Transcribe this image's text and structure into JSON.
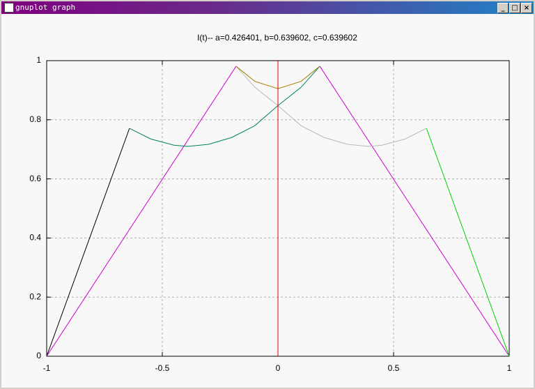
{
  "window": {
    "title": "gnuplot graph"
  },
  "chart_data": {
    "type": "line",
    "title": "I(t)-- a=0.426401, b=0.639602, c=0.639602",
    "xlim": [
      -1,
      1
    ],
    "ylim": [
      0,
      1
    ],
    "xticks": [
      -1,
      -0.5,
      0,
      0.5,
      1
    ],
    "yticks": [
      0,
      0.2,
      0.4,
      0.6,
      0.8,
      1
    ],
    "grid": true,
    "series": [
      {
        "color": "#000000",
        "x": [
          -1,
          -0.642
        ],
        "values": [
          0,
          0.771
        ]
      },
      {
        "color": "#d000d0",
        "x": [
          -1,
          -0.181
        ],
        "values": [
          0,
          0.981
        ]
      },
      {
        "color": "#d000d0",
        "x": [
          0.181,
          1
        ],
        "values": [
          0.981,
          0
        ]
      },
      {
        "color": "#008060",
        "x": [
          -0.642,
          -0.55,
          -0.45,
          -0.39,
          -0.3,
          -0.2,
          -0.1,
          0,
          0.1,
          0.181
        ],
        "values": [
          0.771,
          0.735,
          0.714,
          0.71,
          0.717,
          0.74,
          0.78,
          0.848,
          0.91,
          0.981
        ]
      },
      {
        "color": "#b8b8b8",
        "x": [
          -0.181,
          -0.1,
          0,
          0.1,
          0.2,
          0.3,
          0.39,
          0.45,
          0.55,
          0.642
        ],
        "values": [
          0.981,
          0.91,
          0.848,
          0.78,
          0.74,
          0.717,
          0.71,
          0.714,
          0.735,
          0.771
        ]
      },
      {
        "color": "#a08000",
        "x": [
          -0.181,
          -0.1,
          0,
          0.1,
          0.181
        ],
        "values": [
          0.981,
          0.93,
          0.905,
          0.93,
          0.981
        ]
      },
      {
        "color": "#e00000",
        "x": [
          0,
          0
        ],
        "values": [
          0,
          1
        ]
      },
      {
        "color": "#00d000",
        "x": [
          0.642,
          1
        ],
        "values": [
          0.771,
          0
        ]
      }
    ]
  }
}
